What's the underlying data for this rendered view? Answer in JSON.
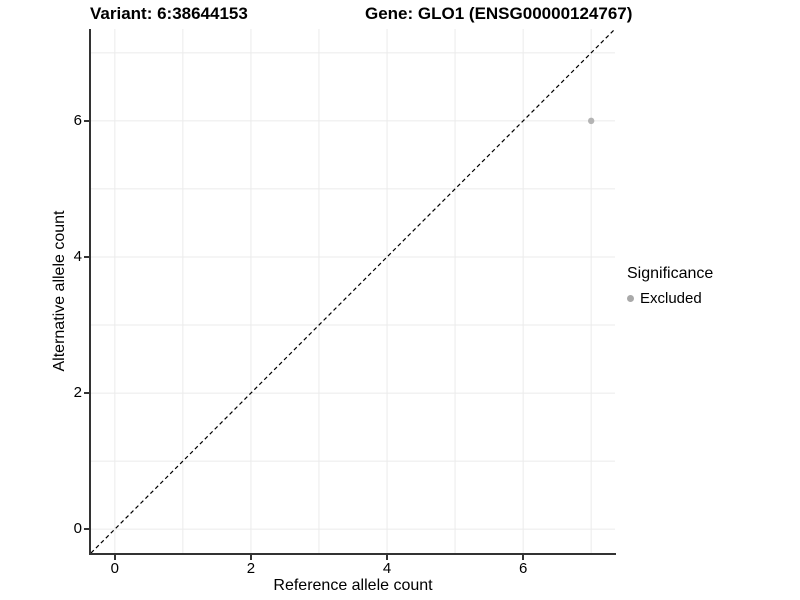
{
  "header": {
    "variant_title": "Variant: 6:38644153",
    "gene_title": "Gene: GLO1 (ENSG00000124767)"
  },
  "chart_data": {
    "type": "scatter",
    "title_left": "Variant: 6:38644153",
    "title_right": "Gene: GLO1 (ENSG00000124767)",
    "xlabel": "Reference allele count",
    "ylabel": "Alternative allele count",
    "xlim": [
      -0.35,
      7.35
    ],
    "ylim": [
      -0.35,
      7.35
    ],
    "xticks": [
      0,
      2,
      4,
      6
    ],
    "yticks": [
      0,
      2,
      4,
      6
    ],
    "grid": true,
    "grid_positions": [
      0,
      1,
      2,
      3,
      4,
      5,
      6,
      7
    ],
    "identity_line": {
      "equation": "y = x",
      "style": "dashed",
      "from": [
        -0.35,
        -0.35
      ],
      "to": [
        7.35,
        7.35
      ]
    },
    "series": [
      {
        "name": "Excluded",
        "color": "#b4b4b4",
        "points": [
          {
            "x": 7,
            "y": 6
          }
        ]
      }
    ],
    "legend": {
      "position": "right",
      "title": "Significance",
      "items": [
        {
          "label": "Excluded",
          "color": "#a9a9a9"
        }
      ]
    }
  },
  "colors": {
    "background": "#ffffff",
    "gridline": "#ebebeb",
    "axis_line": "#333333",
    "tick": "#333333",
    "text": "#000000",
    "dashed_line": "#000000"
  }
}
